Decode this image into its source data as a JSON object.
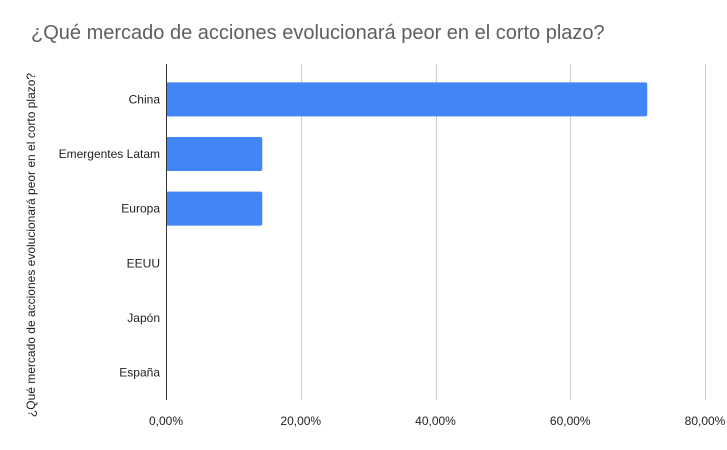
{
  "chart_data": {
    "type": "bar",
    "orientation": "horizontal",
    "title": "¿Qué mercado de acciones evolucionará peor en el corto plazo?",
    "ylabel": "¿Qué mercado de acciones evolucionará peor en el corto plazo?",
    "xlabel": "",
    "categories": [
      "China",
      "Emergentes Latam",
      "Europa",
      "EEUU",
      "Japón",
      "España"
    ],
    "values": [
      71.43,
      14.29,
      14.29,
      0,
      0,
      0
    ],
    "xlim": [
      0,
      80
    ],
    "x_ticks": [
      0,
      20,
      40,
      60,
      80
    ],
    "x_tick_labels": [
      "0,00%",
      "20,00%",
      "40,00%",
      "60,00%",
      "80,00%"
    ],
    "grid": "vertical",
    "legend": "none",
    "bar_color": "#4285f4",
    "grid_color": "#cccccc",
    "axis_color": "#333333"
  }
}
